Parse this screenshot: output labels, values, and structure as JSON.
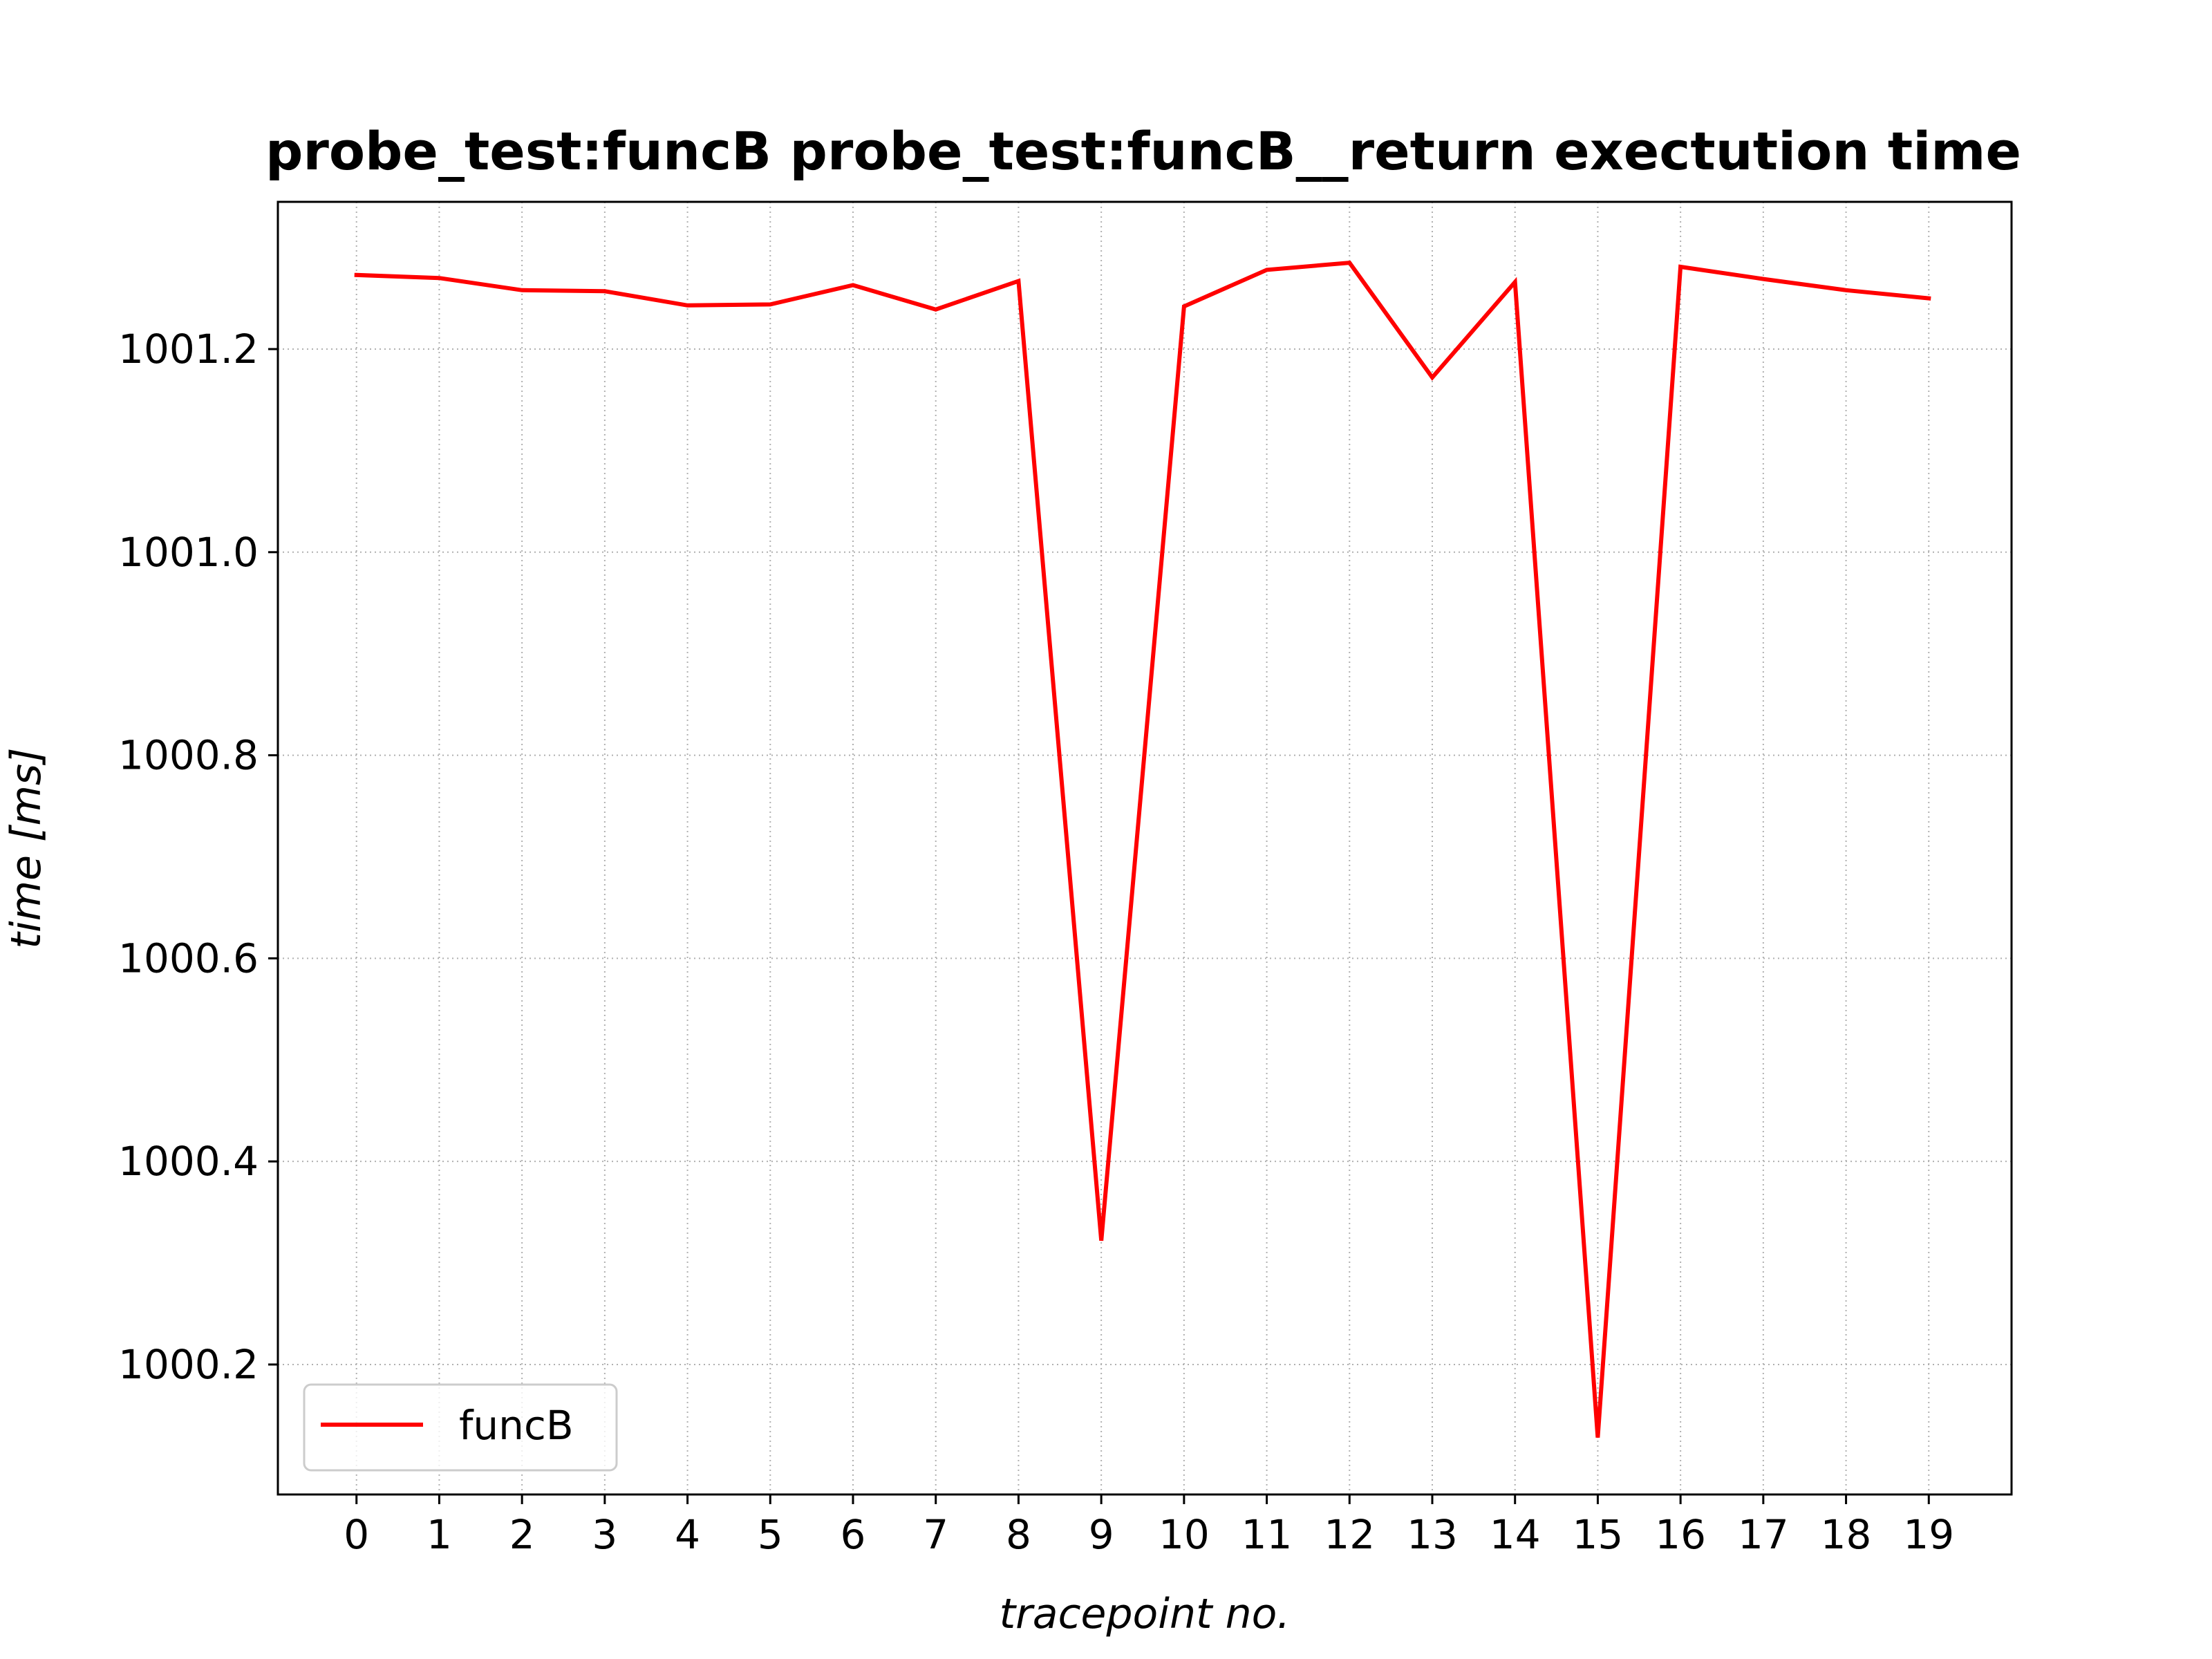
{
  "chart_data": {
    "type": "line",
    "title": "probe_test:funcB probe_test:funcB__return exectution time",
    "xlabel": "tracepoint no.",
    "ylabel": "time [ms]",
    "x": [
      0,
      1,
      2,
      3,
      4,
      5,
      6,
      7,
      8,
      9,
      10,
      11,
      12,
      13,
      14,
      15,
      16,
      17,
      18,
      19
    ],
    "x_tick_labels": [
      "0",
      "1",
      "2",
      "3",
      "4",
      "5",
      "6",
      "7",
      "8",
      "9",
      "10",
      "11",
      "12",
      "13",
      "14",
      "15",
      "16",
      "17",
      "18",
      "19"
    ],
    "y_ticks": [
      1000.2,
      1000.4,
      1000.6,
      1000.8,
      1001.0,
      1001.2
    ],
    "y_tick_labels": [
      "1000.2",
      "1000.4",
      "1000.6",
      "1000.8",
      "1001.0",
      "1001.2"
    ],
    "xlim": [
      -0.95,
      20.0
    ],
    "ylim": [
      1000.072,
      1001.345
    ],
    "series": [
      {
        "name": "funcB",
        "color": "#ff0000",
        "values": [
          1001.273,
          1001.27,
          1001.258,
          1001.257,
          1001.243,
          1001.244,
          1001.263,
          1001.239,
          1001.267,
          1000.322,
          1001.242,
          1001.278,
          1001.285,
          1001.172,
          1001.266,
          1000.128,
          1001.281,
          1001.269,
          1001.258,
          1001.25
        ]
      }
    ],
    "grid": true,
    "grid_style": "dotted",
    "grid_color": "#b0b0b0",
    "legend_position": "lower-left"
  }
}
